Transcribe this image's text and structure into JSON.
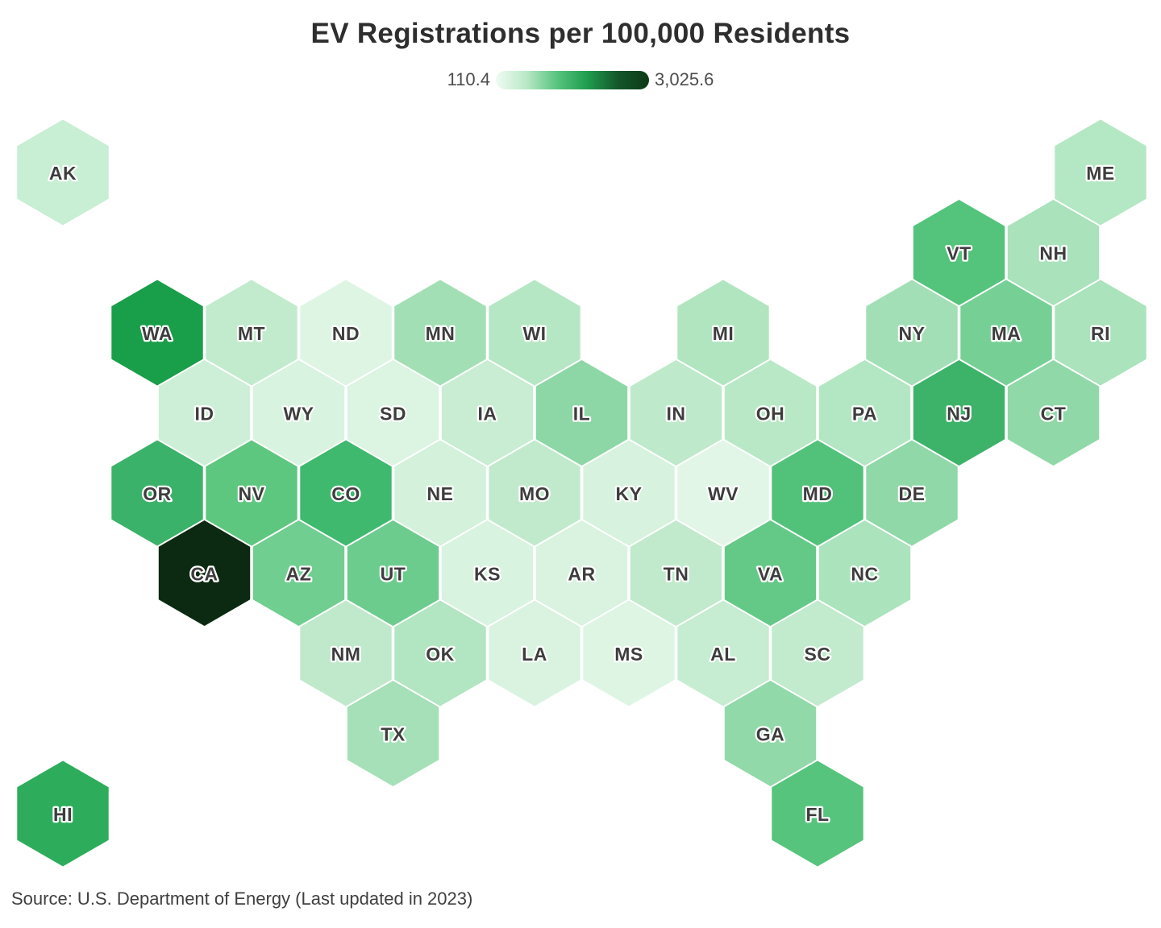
{
  "title": "EV Registrations per 100,000 Residents",
  "legend": {
    "min_label": "110.4",
    "max_label": "3,025.6",
    "gradient_stops": [
      "#f0fbf3",
      "#b9e8c7",
      "#57c47e",
      "#1f9c4d",
      "#14552a",
      "#0d3a16"
    ]
  },
  "source": "Source: U.S. Department of Energy (Last updated in 2023)",
  "chart_data": {
    "type": "heatmap",
    "subtype": "hex-tile-cartogram-usa",
    "title": "EV Registrations per 100,000 Residents",
    "colorbar": {
      "min": 110.4,
      "max": 3025.6,
      "min_label": "110.4",
      "max_label": "3,025.6"
    },
    "value_encoding": "fill color of each state hexagon (light green = low, dark green = high)",
    "states": [
      {
        "abbr": "AK",
        "row": 1,
        "col": 1,
        "color": "#c8eed4"
      },
      {
        "abbr": "ME",
        "row": 1,
        "col": 23,
        "color": "#b4e7c3"
      },
      {
        "abbr": "VT",
        "row": 2,
        "col": 20,
        "color": "#54c37c"
      },
      {
        "abbr": "NH",
        "row": 2,
        "col": 22,
        "color": "#a9e2bb"
      },
      {
        "abbr": "WA",
        "row": 3,
        "col": 3,
        "color": "#199e4a"
      },
      {
        "abbr": "MT",
        "row": 3,
        "col": 5,
        "color": "#c2ebce"
      },
      {
        "abbr": "ND",
        "row": 3,
        "col": 7,
        "color": "#def5e4"
      },
      {
        "abbr": "MN",
        "row": 3,
        "col": 9,
        "color": "#a2dfb5"
      },
      {
        "abbr": "WI",
        "row": 3,
        "col": 11,
        "color": "#b6e7c4"
      },
      {
        "abbr": "MI",
        "row": 3,
        "col": 15,
        "color": "#b1e5c0"
      },
      {
        "abbr": "NY",
        "row": 3,
        "col": 19,
        "color": "#a3dfb6"
      },
      {
        "abbr": "MA",
        "row": 3,
        "col": 21,
        "color": "#76d096"
      },
      {
        "abbr": "RI",
        "row": 3,
        "col": 23,
        "color": "#aae3bc"
      },
      {
        "abbr": "ID",
        "row": 4,
        "col": 4,
        "color": "#cdefd7"
      },
      {
        "abbr": "WY",
        "row": 4,
        "col": 6,
        "color": "#d8f3df"
      },
      {
        "abbr": "SD",
        "row": 4,
        "col": 8,
        "color": "#dcf4e2"
      },
      {
        "abbr": "IA",
        "row": 4,
        "col": 10,
        "color": "#c8edd3"
      },
      {
        "abbr": "IL",
        "row": 4,
        "col": 12,
        "color": "#8dd7a6"
      },
      {
        "abbr": "IN",
        "row": 4,
        "col": 14,
        "color": "#bfe9cb"
      },
      {
        "abbr": "OH",
        "row": 4,
        "col": 16,
        "color": "#b8e8c6"
      },
      {
        "abbr": "PA",
        "row": 4,
        "col": 18,
        "color": "#b3e6c2"
      },
      {
        "abbr": "NJ",
        "row": 4,
        "col": 20,
        "color": "#3db269"
      },
      {
        "abbr": "CT",
        "row": 4,
        "col": 22,
        "color": "#90d8a8"
      },
      {
        "abbr": "OR",
        "row": 5,
        "col": 3,
        "color": "#3bb269"
      },
      {
        "abbr": "NV",
        "row": 5,
        "col": 5,
        "color": "#5ec77f"
      },
      {
        "abbr": "CO",
        "row": 5,
        "col": 7,
        "color": "#3eb96d"
      },
      {
        "abbr": "NE",
        "row": 5,
        "col": 9,
        "color": "#d3f1db"
      },
      {
        "abbr": "MO",
        "row": 5,
        "col": 11,
        "color": "#c1eacc"
      },
      {
        "abbr": "KY",
        "row": 5,
        "col": 13,
        "color": "#d7f2de"
      },
      {
        "abbr": "WV",
        "row": 5,
        "col": 15,
        "color": "#e1f6e7"
      },
      {
        "abbr": "MD",
        "row": 5,
        "col": 17,
        "color": "#52c27a"
      },
      {
        "abbr": "DE",
        "row": 5,
        "col": 19,
        "color": "#90d8a8"
      },
      {
        "abbr": "CA",
        "row": 6,
        "col": 4,
        "color": "#0b2a11"
      },
      {
        "abbr": "AZ",
        "row": 6,
        "col": 6,
        "color": "#6fce90"
      },
      {
        "abbr": "UT",
        "row": 6,
        "col": 8,
        "color": "#6ccc8e"
      },
      {
        "abbr": "KS",
        "row": 6,
        "col": 10,
        "color": "#d8f3df"
      },
      {
        "abbr": "AR",
        "row": 6,
        "col": 12,
        "color": "#d9f3e0"
      },
      {
        "abbr": "TN",
        "row": 6,
        "col": 14,
        "color": "#c1eacc"
      },
      {
        "abbr": "VA",
        "row": 6,
        "col": 16,
        "color": "#64c987"
      },
      {
        "abbr": "NC",
        "row": 6,
        "col": 18,
        "color": "#abe3bc"
      },
      {
        "abbr": "NM",
        "row": 7,
        "col": 7,
        "color": "#c0e9cb"
      },
      {
        "abbr": "OK",
        "row": 7,
        "col": 9,
        "color": "#b2e5c1"
      },
      {
        "abbr": "LA",
        "row": 7,
        "col": 11,
        "color": "#d9f3e0"
      },
      {
        "abbr": "MS",
        "row": 7,
        "col": 13,
        "color": "#def5e4"
      },
      {
        "abbr": "AL",
        "row": 7,
        "col": 15,
        "color": "#c6ecd1"
      },
      {
        "abbr": "SC",
        "row": 7,
        "col": 17,
        "color": "#c2eacd"
      },
      {
        "abbr": "TX",
        "row": 8,
        "col": 8,
        "color": "#a5e0b8"
      },
      {
        "abbr": "GA",
        "row": 8,
        "col": 16,
        "color": "#91d9a9"
      },
      {
        "abbr": "HI",
        "row": 9,
        "col": 1,
        "color": "#2dad5b"
      },
      {
        "abbr": "FL",
        "row": 9,
        "col": 17,
        "color": "#56c47d"
      }
    ]
  }
}
